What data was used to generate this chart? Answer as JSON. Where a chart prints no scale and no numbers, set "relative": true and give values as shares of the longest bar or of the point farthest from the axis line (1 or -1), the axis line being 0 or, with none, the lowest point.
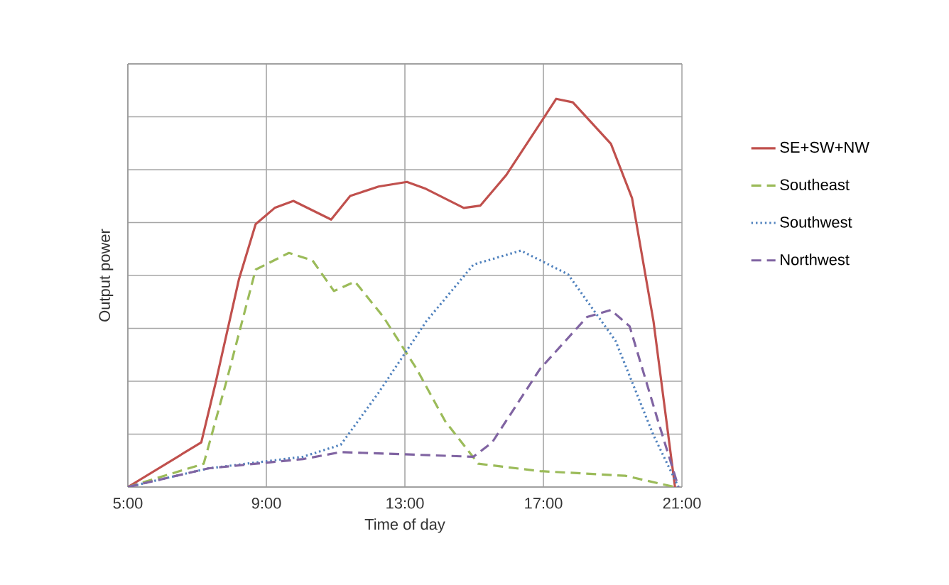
{
  "chart_data": {
    "type": "line",
    "relative": true,
    "xlabel": "Time of day",
    "ylabel": "Output power",
    "xlim": [
      5,
      21
    ],
    "xticks": [
      {
        "value": 5,
        "label": "5:00"
      },
      {
        "value": 9,
        "label": "9:00"
      },
      {
        "value": 13,
        "label": "13:00"
      },
      {
        "value": 17,
        "label": "17:00"
      },
      {
        "value": 21,
        "label": "21:00"
      }
    ],
    "grid": true,
    "legend": "right",
    "marker": "none",
    "series": [
      {
        "name": "SE+SW+NW",
        "color": "#c0504d",
        "line_style": "solid",
        "x": [
          5,
          7.12,
          7.53,
          8.21,
          8.69,
          9.24,
          9.78,
          10.87,
          11.42,
          12.24,
          13.06,
          13.61,
          14.7,
          15.18,
          15.93,
          17.37,
          17.85,
          18.95,
          19.56,
          20.18,
          20.8
        ],
        "values": [
          0,
          0.115,
          0.267,
          0.536,
          0.677,
          0.719,
          0.737,
          0.689,
          0.75,
          0.774,
          0.786,
          0.768,
          0.719,
          0.725,
          0.804,
          1.0,
          0.991,
          0.884,
          0.744,
          0.426,
          0
        ]
      },
      {
        "name": "Southeast",
        "color": "#9bbb59",
        "line_style": "dashed",
        "x": [
          5,
          7.19,
          7.87,
          8.69,
          9.65,
          10.33,
          10.95,
          11.56,
          12.38,
          13.34,
          14.16,
          15.12,
          16.9,
          19.36,
          20.8
        ],
        "values": [
          0,
          0.06,
          0.28,
          0.56,
          0.603,
          0.584,
          0.505,
          0.529,
          0.438,
          0.304,
          0.17,
          0.06,
          0.041,
          0.029,
          0
        ]
      },
      {
        "name": "Southwest",
        "color": "#4f81bd",
        "line_style": "dotted",
        "x": [
          5,
          7.32,
          10.06,
          11.15,
          12.24,
          13.61,
          14.98,
          16.35,
          17.71,
          19.08,
          20.18,
          20.9
        ],
        "values": [
          0,
          0.048,
          0.078,
          0.109,
          0.243,
          0.426,
          0.573,
          0.609,
          0.548,
          0.377,
          0.133,
          0
        ]
      },
      {
        "name": "Northwest",
        "color": "#8064a2",
        "line_style": "dashed",
        "x": [
          5,
          7.32,
          10.06,
          11.15,
          14.98,
          15.52,
          16.9,
          18.26,
          18.95,
          19.49,
          20.31,
          20.9
        ],
        "values": [
          0,
          0.048,
          0.072,
          0.09,
          0.078,
          0.115,
          0.304,
          0.438,
          0.456,
          0.414,
          0.17,
          0
        ]
      }
    ]
  }
}
